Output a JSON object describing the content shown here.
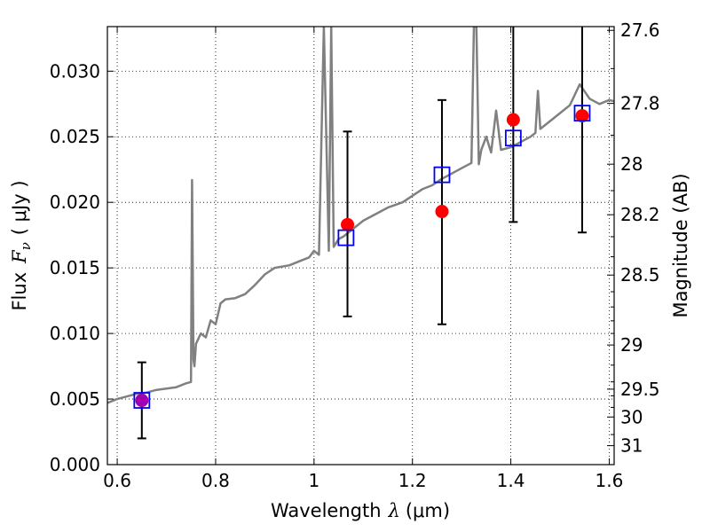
{
  "chart_data": {
    "type": "scatter",
    "xlabel_text": "Wavelength",
    "xlabel_symbol": "λ",
    "xlabel_unit": "(μm)",
    "ylabel_text": "Flux",
    "ylabel_symbol": "F",
    "ylabel_subscript": "ν",
    "ylabel_unit": "( μJy )",
    "y2label": "Magnitude (AB)",
    "xlim": [
      0.58,
      1.61
    ],
    "ylim": [
      0.0,
      0.0334
    ],
    "grid": true,
    "x_ticks": [
      0.6,
      0.8,
      1.0,
      1.2,
      1.4,
      1.6
    ],
    "x_tick_labels": [
      "0.6",
      "0.8",
      "1",
      "1.2",
      "1.4",
      "1.6"
    ],
    "y_ticks": [
      0.0,
      0.005,
      0.01,
      0.015,
      0.02,
      0.025,
      0.03
    ],
    "y_tick_labels": [
      "0.000",
      "0.005",
      "0.010",
      "0.015",
      "0.020",
      "0.025",
      "0.030"
    ],
    "y2_tick_mags": [
      27.6,
      27.8,
      28,
      28.2,
      28.5,
      29,
      29.5,
      30,
      31
    ],
    "y2_tick_labels": [
      "27.6",
      "27.8",
      "28",
      "28.2",
      "28.5",
      "29",
      "29.5",
      "30",
      "31"
    ],
    "y2_minor_mags": [
      27.7,
      27.9,
      28.1,
      28.3,
      28.4,
      28.6,
      28.7,
      28.8,
      28.9,
      29.2,
      29.4,
      29.6,
      29.8,
      30.5
    ],
    "colors": {
      "sed": "#808080",
      "observed": "#ff0000",
      "model": "#0000ff",
      "errorbar": "#000000",
      "blended": "#a000b0"
    },
    "sed_model": {
      "x": [
        0.58,
        0.6,
        0.62,
        0.64,
        0.66,
        0.68,
        0.7,
        0.72,
        0.74,
        0.75,
        0.752,
        0.755,
        0.757,
        0.76,
        0.77,
        0.78,
        0.79,
        0.8,
        0.81,
        0.82,
        0.84,
        0.86,
        0.88,
        0.9,
        0.92,
        0.95,
        0.97,
        0.99,
        1.0,
        1.01,
        1.02,
        1.03,
        1.035,
        1.04,
        1.05,
        1.06,
        1.08,
        1.1,
        1.12,
        1.15,
        1.18,
        1.2,
        1.22,
        1.24,
        1.26,
        1.28,
        1.3,
        1.32,
        1.325,
        1.33,
        1.335,
        1.34,
        1.35,
        1.36,
        1.37,
        1.38,
        1.4,
        1.42,
        1.44,
        1.45,
        1.455,
        1.46,
        1.48,
        1.5,
        1.52,
        1.54,
        1.56,
        1.58,
        1.6,
        1.61
      ],
      "y": [
        0.0047,
        0.005,
        0.0052,
        0.0054,
        0.0055,
        0.0057,
        0.0058,
        0.0059,
        0.0062,
        0.0063,
        0.0217,
        0.008,
        0.0075,
        0.0092,
        0.01,
        0.0097,
        0.011,
        0.0107,
        0.0123,
        0.0126,
        0.0127,
        0.013,
        0.0137,
        0.0145,
        0.015,
        0.0152,
        0.0155,
        0.0158,
        0.0163,
        0.016,
        0.0334,
        0.0163,
        0.0334,
        0.0166,
        0.0172,
        0.0174,
        0.018,
        0.0186,
        0.019,
        0.0196,
        0.02,
        0.0205,
        0.021,
        0.0213,
        0.0218,
        0.0222,
        0.0226,
        0.023,
        0.0334,
        0.0334,
        0.0229,
        0.024,
        0.025,
        0.0238,
        0.027,
        0.024,
        0.0242,
        0.0246,
        0.025,
        0.0253,
        0.0285,
        0.0256,
        0.0262,
        0.0268,
        0.0274,
        0.029,
        0.0279,
        0.0275,
        0.0278,
        0.0277
      ]
    },
    "observed": [
      {
        "x": 0.65,
        "y": 0.0049,
        "err_lo": 0.002,
        "err_hi": 0.0078
      },
      {
        "x": 1.068,
        "y": 0.0183,
        "err_lo": 0.0113,
        "err_hi": 0.0254
      },
      {
        "x": 1.26,
        "y": 0.0193,
        "err_lo": 0.0107,
        "err_hi": 0.0278
      },
      {
        "x": 1.405,
        "y": 0.0263,
        "err_lo": 0.0185,
        "err_hi": 0.0341
      },
      {
        "x": 1.545,
        "y": 0.0266,
        "err_lo": 0.0177,
        "err_hi": 0.0341
      }
    ],
    "model_photometry": [
      {
        "x": 0.65,
        "y": 0.0049
      },
      {
        "x": 1.065,
        "y": 0.0173
      },
      {
        "x": 1.26,
        "y": 0.0221
      },
      {
        "x": 1.405,
        "y": 0.0249
      },
      {
        "x": 1.545,
        "y": 0.0268
      }
    ]
  }
}
